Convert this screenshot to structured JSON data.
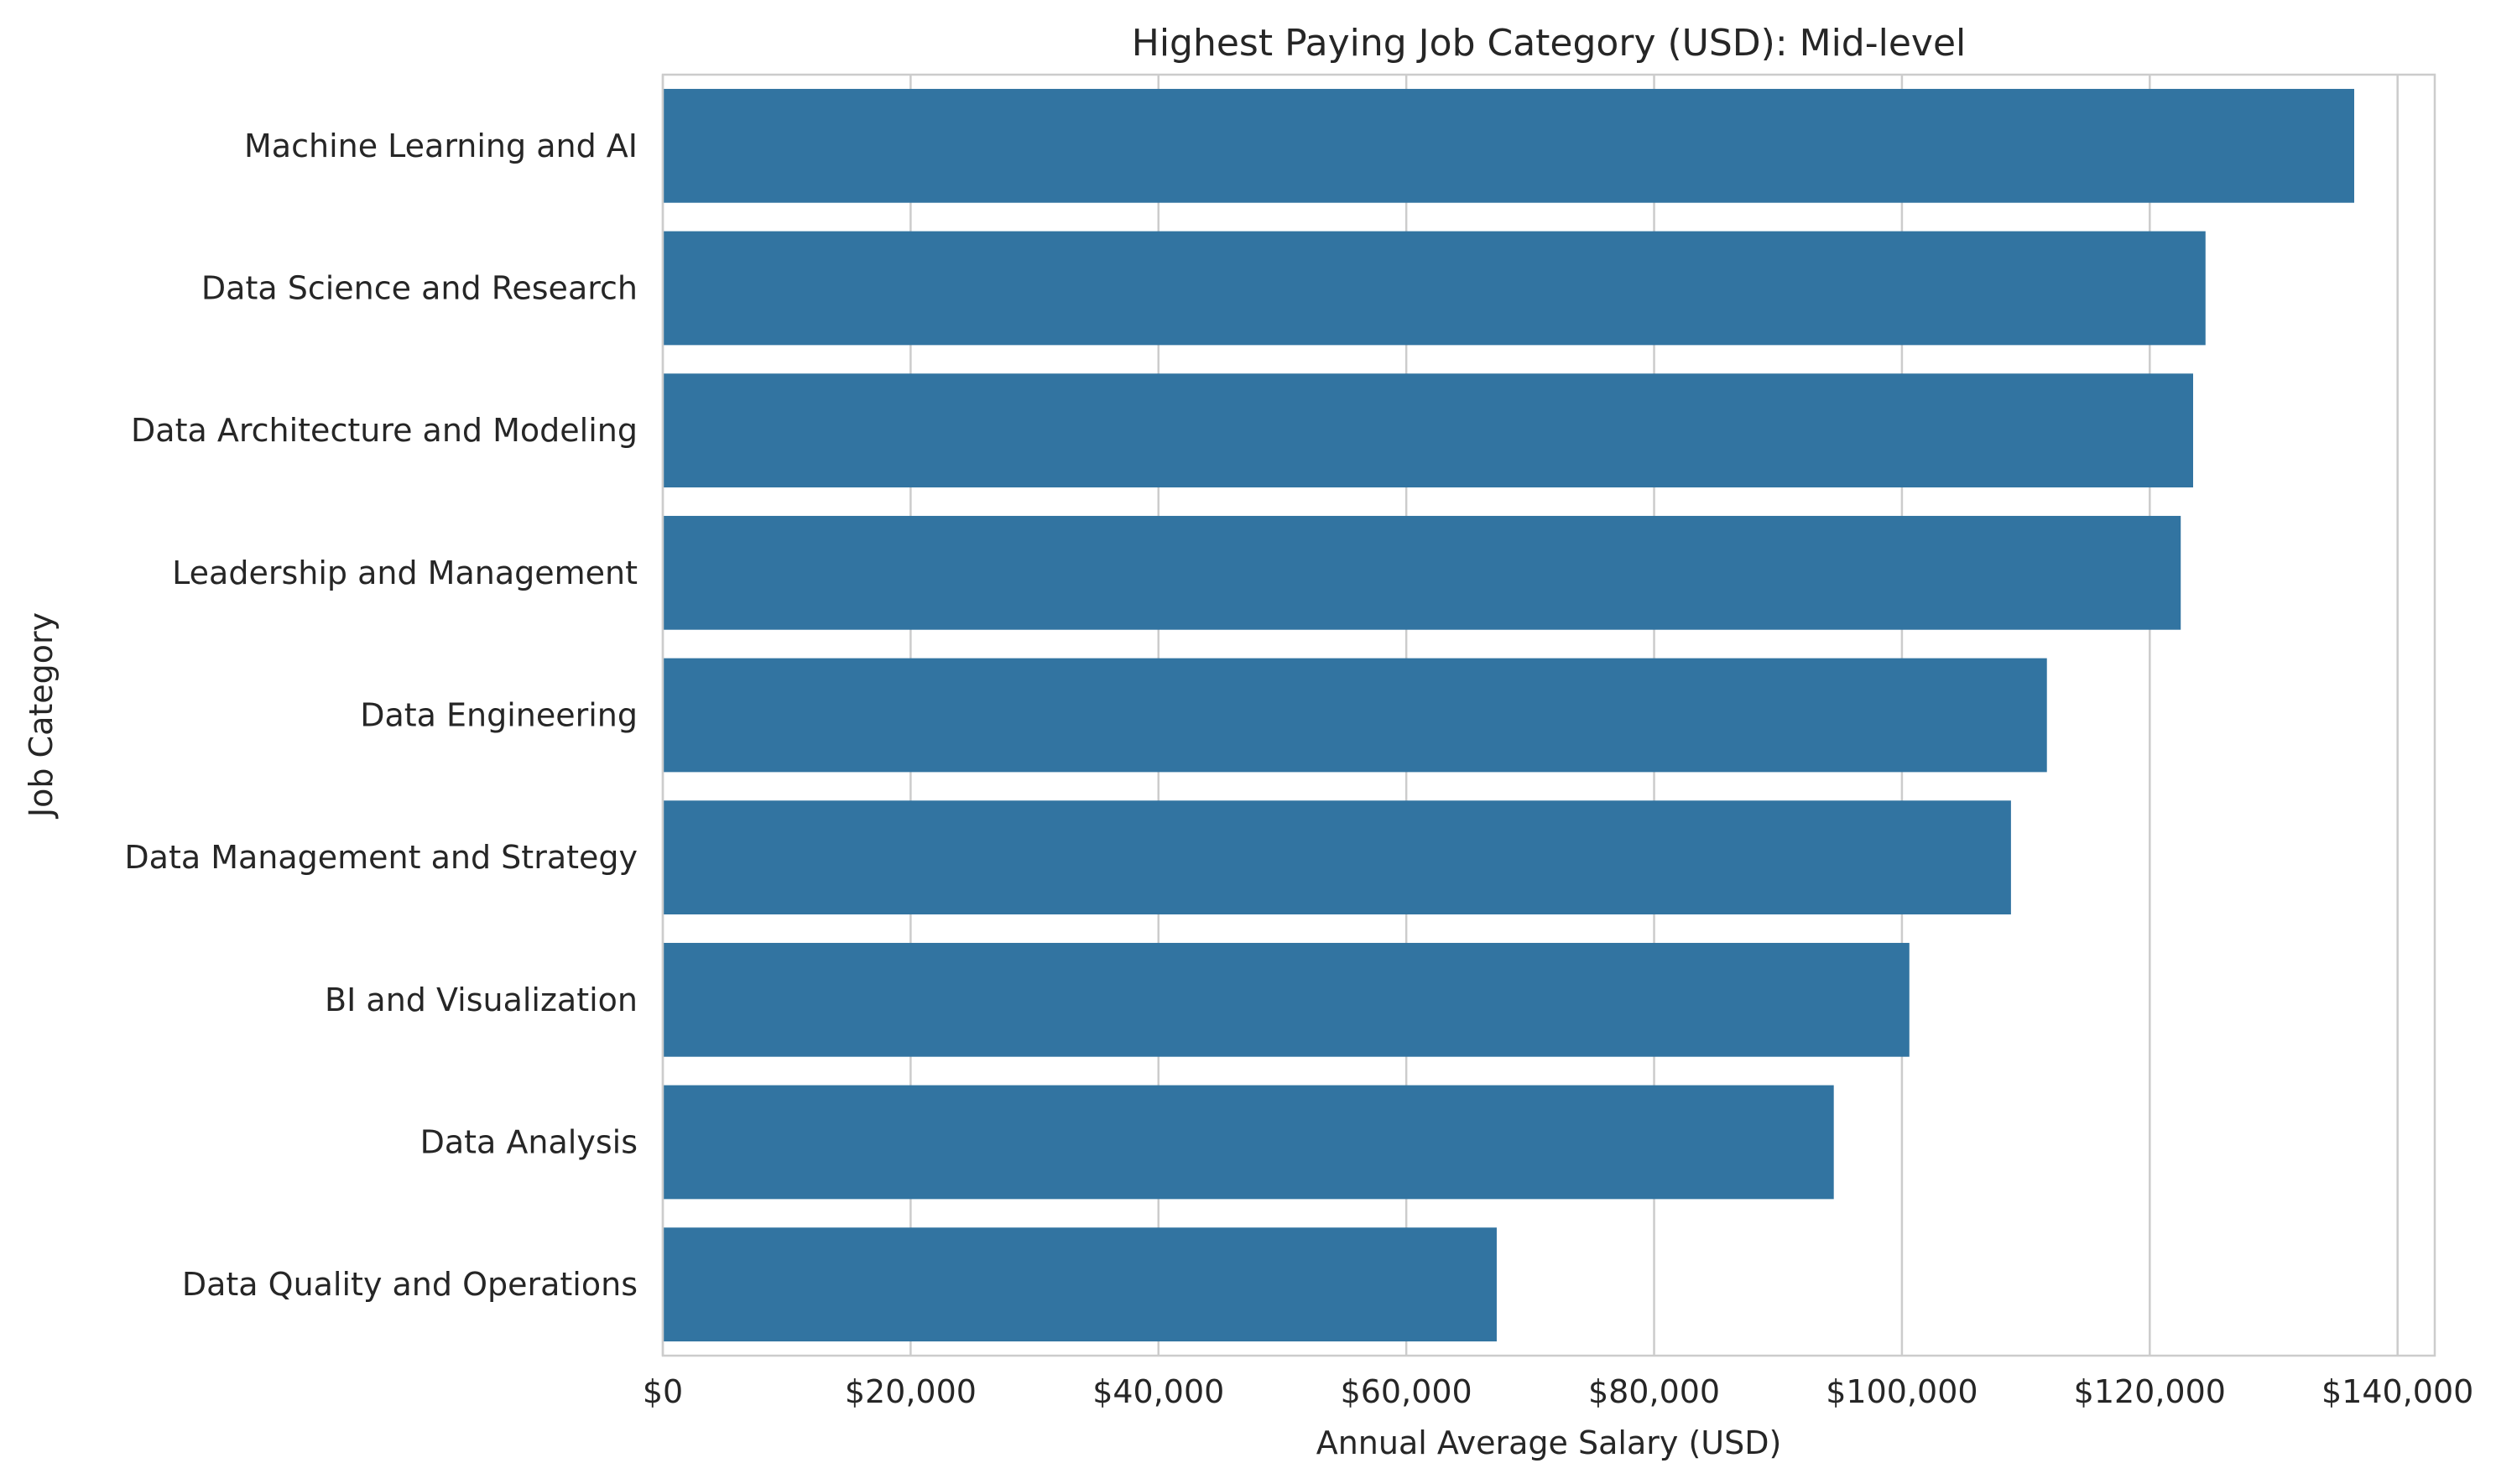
{
  "chart_data": {
    "type": "bar",
    "orientation": "horizontal",
    "title": "Highest Paying Job Category (USD): Mid-level",
    "xlabel": "Annual Average Salary (USD)",
    "ylabel": "Job Category",
    "categories": [
      "Machine Learning and AI",
      "Data Science and Research",
      "Data Architecture and Modeling",
      "Leadership and Management",
      "Data Engineering",
      "Data Management and Strategy",
      "BI and Visualization",
      "Data Analysis",
      "Data Quality and Operations"
    ],
    "values": [
      136500,
      124500,
      123500,
      122500,
      111700,
      108800,
      100600,
      94500,
      67300
    ],
    "xlim": [
      0,
      143000
    ],
    "xticks": [
      0,
      20000,
      40000,
      60000,
      80000,
      100000,
      120000,
      140000
    ],
    "xtick_labels": [
      "$0",
      "$20,000",
      "$40,000",
      "$60,000",
      "$80,000",
      "$100,000",
      "$120,000",
      "$140,000"
    ],
    "grid": true,
    "legend": "none",
    "bar_color": "#3274a1"
  }
}
